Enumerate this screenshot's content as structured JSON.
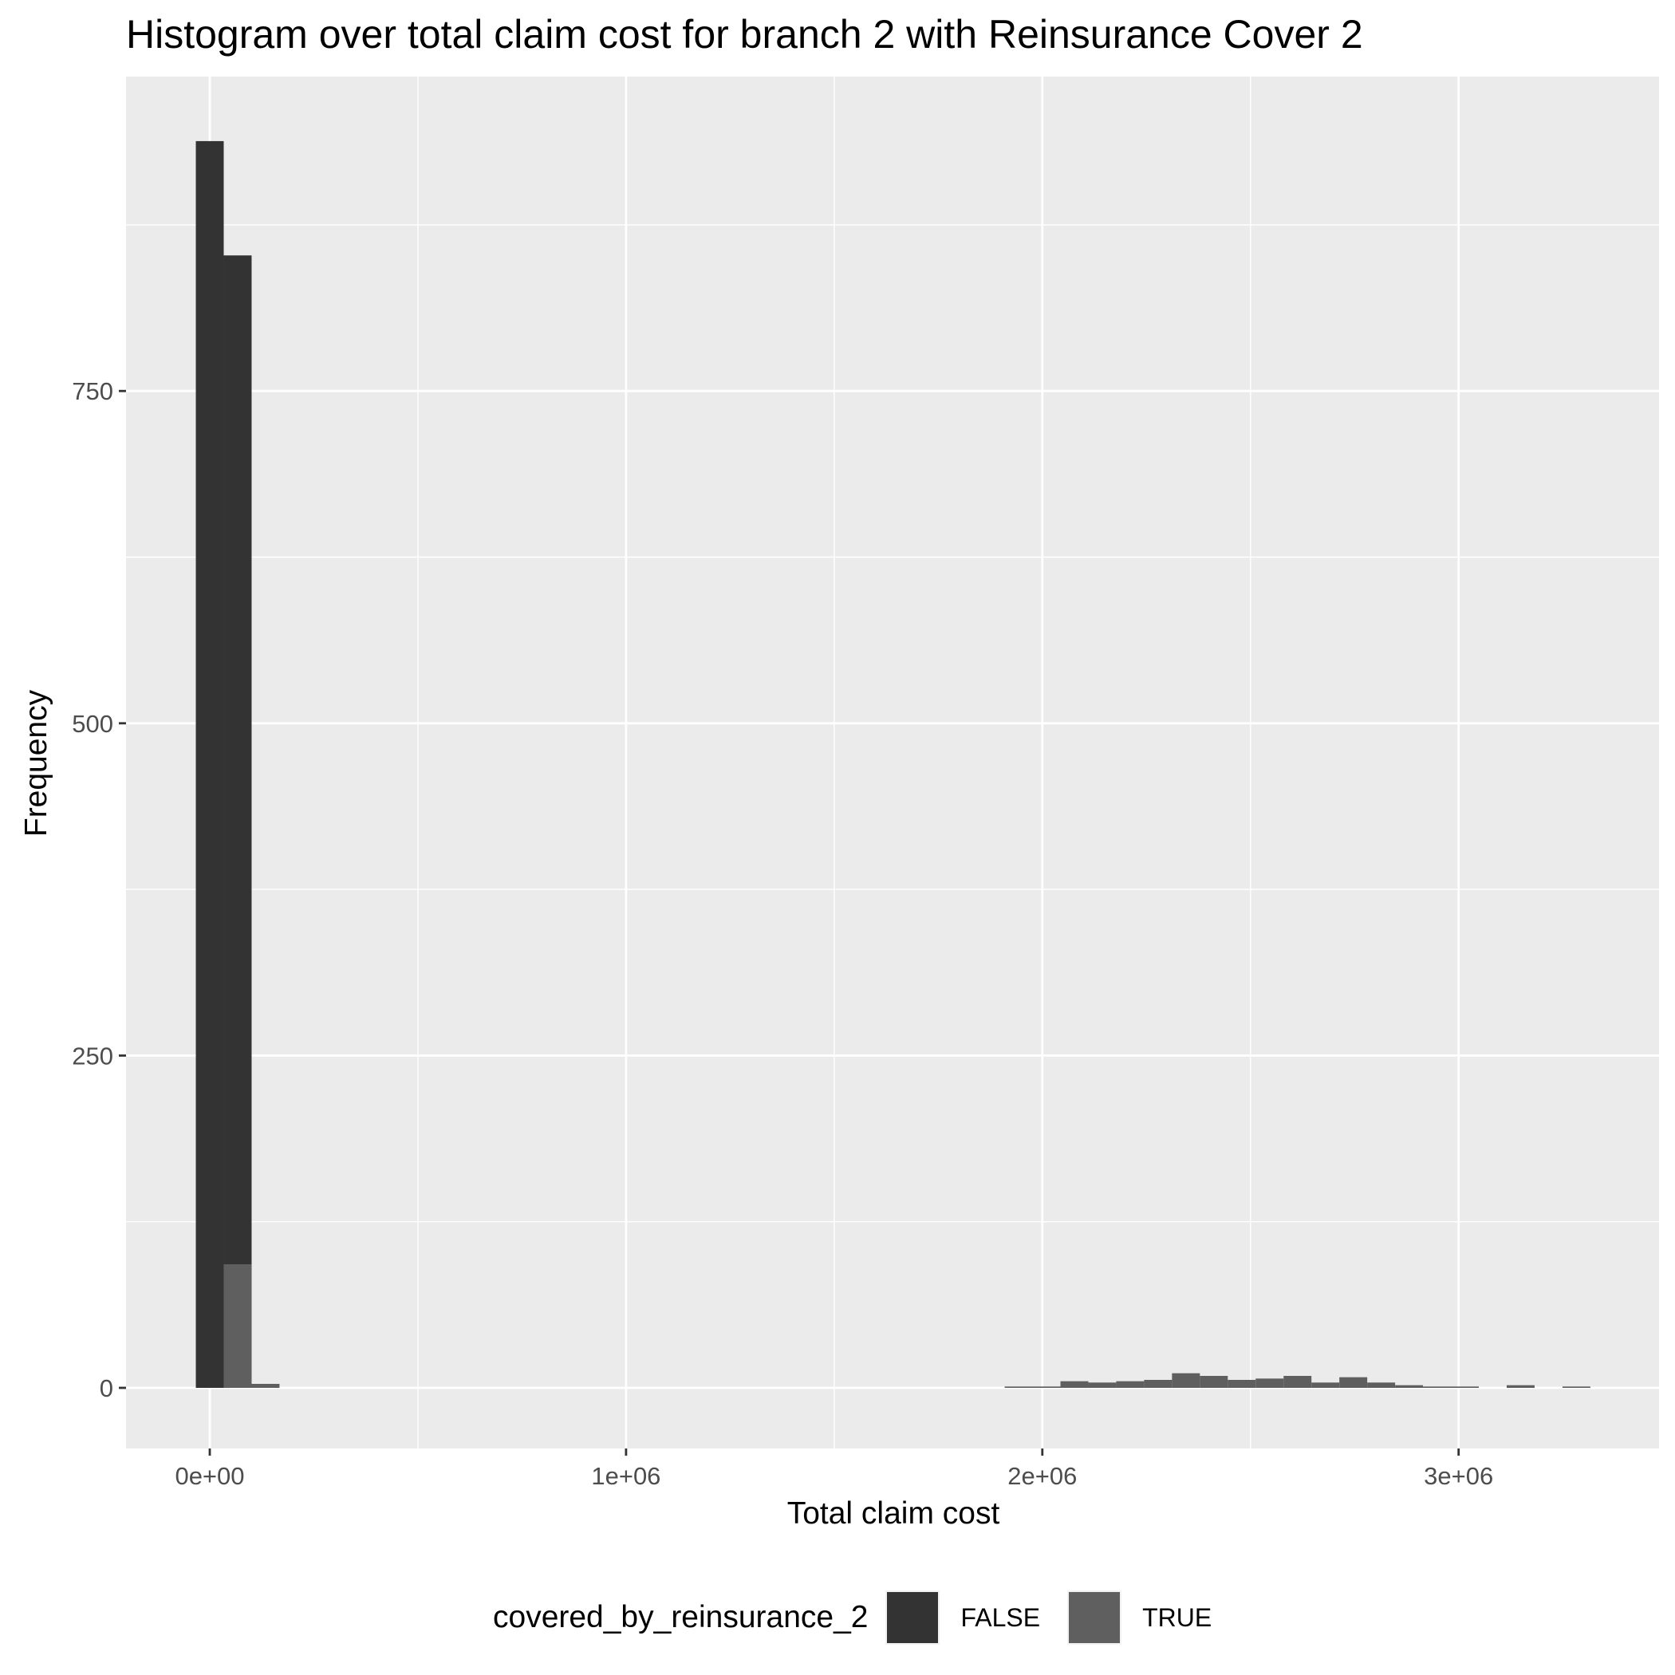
{
  "chart_data": {
    "type": "bar",
    "title": "Histogram over total claim cost for branch 2 with Reinsurance Cover 2",
    "xlabel": "Total claim cost",
    "ylabel": "Frequency",
    "xlim": [
      -200000,
      3500000
    ],
    "ylim": [
      -46,
      984
    ],
    "x_ticks": [
      {
        "value": 0,
        "label": "0e+00"
      },
      {
        "value": 1000000,
        "label": "1e+06"
      },
      {
        "value": 2000000,
        "label": "2e+06"
      },
      {
        "value": 3000000,
        "label": "3e+06"
      }
    ],
    "y_ticks": [
      {
        "value": 0,
        "label": "0"
      },
      {
        "value": 250,
        "label": "250"
      },
      {
        "value": 500,
        "label": "500"
      },
      {
        "value": 750,
        "label": "750"
      }
    ],
    "x_minor_grid": [
      500000,
      1500000,
      2500000
    ],
    "y_minor_grid": [
      125,
      375,
      625,
      875
    ],
    "bin_width": 67000,
    "grid": true,
    "legend": {
      "title": "covered_by_reinsurance_2",
      "position": "bottom"
    },
    "series": [
      {
        "name": "FALSE",
        "color": "#333333",
        "bins": [
          {
            "x": 0,
            "value": 938
          },
          {
            "x": 67000,
            "value": 852
          }
        ]
      },
      {
        "name": "TRUE",
        "color": "#5f5f5f",
        "bins": [
          {
            "x": 67000,
            "value": 93
          },
          {
            "x": 134000,
            "value": 3
          },
          {
            "x": 1943000,
            "value": 1
          },
          {
            "x": 2010000,
            "value": 1
          },
          {
            "x": 2077000,
            "value": 5
          },
          {
            "x": 2144000,
            "value": 4
          },
          {
            "x": 2211000,
            "value": 5
          },
          {
            "x": 2278000,
            "value": 6
          },
          {
            "x": 2345000,
            "value": 11
          },
          {
            "x": 2412000,
            "value": 9
          },
          {
            "x": 2479000,
            "value": 6
          },
          {
            "x": 2546000,
            "value": 7
          },
          {
            "x": 2613000,
            "value": 9
          },
          {
            "x": 2680000,
            "value": 4
          },
          {
            "x": 2747000,
            "value": 8
          },
          {
            "x": 2814000,
            "value": 4
          },
          {
            "x": 2881000,
            "value": 2
          },
          {
            "x": 2948000,
            "value": 1
          },
          {
            "x": 3015000,
            "value": 1
          },
          {
            "x": 3149000,
            "value": 2
          },
          {
            "x": 3283000,
            "value": 1
          }
        ]
      }
    ]
  }
}
